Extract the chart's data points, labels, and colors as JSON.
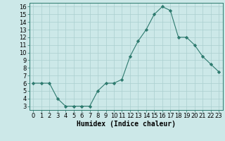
{
  "x": [
    0,
    1,
    2,
    3,
    4,
    5,
    6,
    7,
    8,
    9,
    10,
    11,
    12,
    13,
    14,
    15,
    16,
    17,
    18,
    19,
    20,
    21,
    22,
    23
  ],
  "y": [
    6.0,
    6.0,
    6.0,
    4.0,
    3.0,
    3.0,
    3.0,
    3.0,
    5.0,
    6.0,
    6.0,
    6.5,
    9.5,
    11.5,
    13.0,
    15.0,
    16.0,
    15.5,
    12.0,
    12.0,
    11.0,
    9.5,
    8.5,
    7.5
  ],
  "xlabel": "Humidex (Indice chaleur)",
  "xlim": [
    -0.5,
    23.5
  ],
  "ylim": [
    2.5,
    16.5
  ],
  "yticks": [
    3,
    4,
    5,
    6,
    7,
    8,
    9,
    10,
    11,
    12,
    13,
    14,
    15,
    16
  ],
  "xticks": [
    0,
    1,
    2,
    3,
    4,
    5,
    6,
    7,
    8,
    9,
    10,
    11,
    12,
    13,
    14,
    15,
    16,
    17,
    18,
    19,
    20,
    21,
    22,
    23
  ],
  "line_color": "#2d7a6e",
  "marker_color": "#2d7a6e",
  "bg_color": "#cce8e8",
  "grid_color": "#aacfcf",
  "label_fontsize": 7,
  "tick_fontsize": 6
}
